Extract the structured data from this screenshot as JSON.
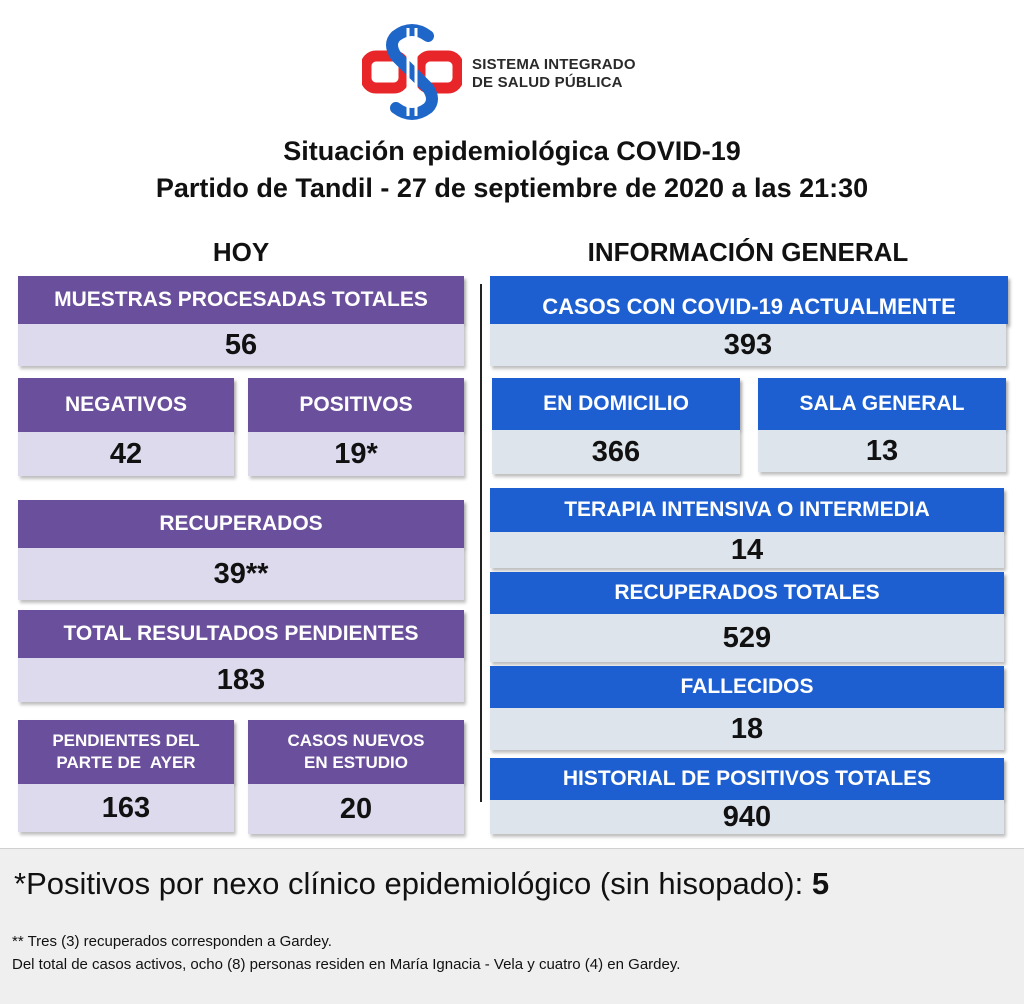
{
  "brand": {
    "line1": "SISTEMA INTEGRADO",
    "line2": "DE SALUD PÚBLICA",
    "colors": {
      "red": "#e8262a",
      "blue": "#1f66c9"
    }
  },
  "title": {
    "line1": "Situación epidemiológica COVID-19",
    "line2": "Partido de Tandil - 27 de septiembre de 2020 a las 21:30"
  },
  "hoy": {
    "heading": "HOY",
    "muestras": {
      "label": "MUESTRAS PROCESADAS TOTALES",
      "value": "56"
    },
    "negativos": {
      "label": "NEGATIVOS",
      "value": "42"
    },
    "positivos": {
      "label": "POSITIVOS",
      "value": "19*"
    },
    "recuperados": {
      "label": "RECUPERADOS",
      "value": "39**"
    },
    "pendientes": {
      "label": "TOTAL RESULTADOS PENDIENTES",
      "value": "183"
    },
    "pendientes_ayer": {
      "label_line1": "PENDIENTES DEL",
      "label_line2": "PARTE DE  AYER",
      "value": "163"
    },
    "casos_nuevos": {
      "label_line1": "CASOS NUEVOS",
      "label_line2": "EN ESTUDIO",
      "value": "20"
    }
  },
  "general": {
    "heading": "INFORMACIÓN GENERAL",
    "actuales": {
      "label": "CASOS CON COVID-19 ACTUALMENTE",
      "value": "393"
    },
    "domicilio": {
      "label": "EN DOMICILIO",
      "value": "366"
    },
    "sala": {
      "label": "SALA GENERAL",
      "value": "13"
    },
    "terapia": {
      "label": "TERAPIA INTENSIVA O INTERMEDIA",
      "value": "14"
    },
    "recuperados_totales": {
      "label": "RECUPERADOS TOTALES",
      "value": "529"
    },
    "fallecidos": {
      "label": "FALLECIDOS",
      "value": "18"
    },
    "historial": {
      "label": "HISTORIAL DE POSITIVOS TOTALES",
      "value": "940"
    }
  },
  "footer": {
    "main_text": "*Positivos por nexo clínico epidemiológico (sin hisopado): ",
    "main_value": "5",
    "note1": "** Tres (3) recuperados corresponden a Gardey.",
    "note2": "Del total de casos activos, ocho (8) personas residen en María Ignacia - Vela y cuatro (4) en Gardey."
  }
}
